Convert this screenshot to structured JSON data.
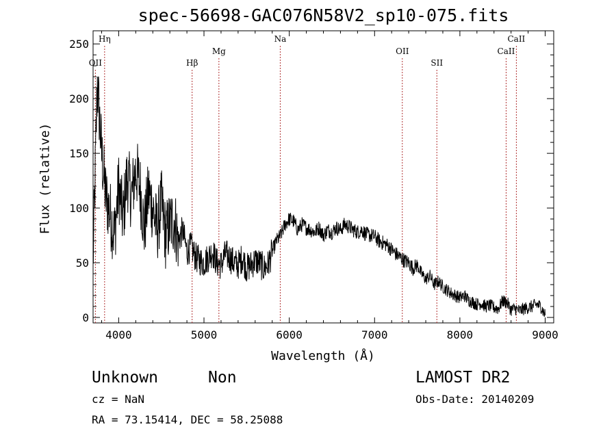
{
  "header": {
    "title": "spec-56698-GAC076N58V2_sp10-075.fits"
  },
  "chart_data": {
    "type": "line",
    "title": "spec-56698-GAC076N58V2_sp10-075.fits",
    "xlabel": "Wavelength (Å)",
    "ylabel": "Flux (relative)",
    "xlim": [
      3700,
      9100
    ],
    "ylim": [
      -5,
      262
    ],
    "x_ticks": [
      4000,
      5000,
      6000,
      7000,
      8000,
      9000
    ],
    "y_ticks": [
      0,
      50,
      100,
      150,
      200,
      250
    ],
    "grid": false,
    "colors": {
      "spectrum": "#000000",
      "line_markers": "#b03030"
    },
    "spectral_lines": [
      {
        "label": "OII",
        "wavelength": 3727,
        "row": 2
      },
      {
        "label": "Hη",
        "wavelength": 3835,
        "row": 1
      },
      {
        "label": "Hβ",
        "wavelength": 4861,
        "row": 2
      },
      {
        "label": "Mg",
        "wavelength": 5175,
        "row": 1.5
      },
      {
        "label": "Na",
        "wavelength": 5894,
        "row": 1
      },
      {
        "label": "OII",
        "wavelength": 7325,
        "row": 1.5
      },
      {
        "label": "SII",
        "wavelength": 7730,
        "row": 2
      },
      {
        "label": "CaII",
        "wavelength": 8542,
        "row": 1.5
      },
      {
        "label": "CaII",
        "wavelength": 8662,
        "row": 1
      }
    ],
    "series": [
      {
        "x": [
          3700,
          3750,
          3800,
          3850,
          3900,
          3950,
          4000,
          4050,
          4100,
          4150,
          4200,
          4250,
          4300,
          4350,
          4400,
          4450,
          4500,
          4550,
          4600,
          4650,
          4700,
          4750,
          4800,
          4850,
          4900,
          4950,
          5000,
          5050,
          5100,
          5150,
          5200,
          5250,
          5300,
          5350,
          5400,
          5450,
          5500,
          5550,
          5600,
          5650,
          5700,
          5750,
          5800,
          5850,
          5900,
          5950,
          6000,
          6050,
          6100,
          6150,
          6200,
          6250,
          6300,
          6350,
          6400,
          6450,
          6500,
          6550,
          6600,
          6650,
          6700,
          6750,
          6800,
          6850,
          6900,
          6950,
          7000,
          7050,
          7100,
          7150,
          7200,
          7250,
          7300,
          7350,
          7400,
          7450,
          7500,
          7550,
          7600,
          7650,
          7700,
          7750,
          7800,
          7850,
          7900,
          7950,
          8000,
          8050,
          8100,
          8150,
          8200,
          8250,
          8300,
          8350,
          8400,
          8450,
          8500,
          8550,
          8600,
          8650,
          8700,
          8750,
          8800,
          8850,
          8900,
          8950,
          9000
        ],
        "values": [
          50,
          215,
          150,
          110,
          95,
          75,
          120,
          90,
          130,
          110,
          135,
          120,
          80,
          115,
          100,
          80,
          105,
          75,
          85,
          90,
          70,
          80,
          60,
          65,
          55,
          52,
          50,
          55,
          60,
          50,
          48,
          58,
          55,
          50,
          48,
          55,
          45,
          48,
          52,
          50,
          45,
          48,
          60,
          70,
          75,
          85,
          90,
          88,
          80,
          85,
          82,
          80,
          78,
          82,
          75,
          80,
          78,
          82,
          80,
          85,
          83,
          80,
          78,
          80,
          76,
          75,
          74,
          70,
          68,
          66,
          62,
          58,
          55,
          52,
          50,
          45,
          48,
          40,
          35,
          38,
          30,
          33,
          28,
          25,
          22,
          20,
          18,
          20,
          16,
          14,
          12,
          13,
          10,
          11,
          9,
          8,
          15,
          14,
          7,
          8,
          6,
          8,
          9,
          10,
          12,
          10,
          2
        ]
      }
    ]
  },
  "info": {
    "class": "Unknown",
    "subclass": "Non",
    "cz": "cz = NaN",
    "coords": "RA =  73.15414, DEC =  58.25088",
    "survey": "LAMOST DR2",
    "obsdate": "Obs-Date: 20140209"
  }
}
